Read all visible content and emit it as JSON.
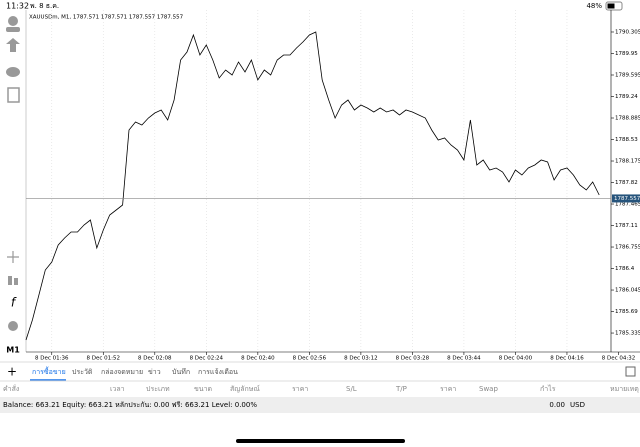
{
  "status_bar": {
    "time": "11:32",
    "date": "พ. 8 ธ.ค.",
    "battery": "48%"
  },
  "toolbar": {
    "timeframe": "M1"
  },
  "chart_data": {
    "type": "line",
    "title": "XAUUSDm, M1, 1787.571 1787.571 1787.557 1787.557",
    "x": [
      "8 Dec 01:28",
      "8 Dec 01:30",
      "8 Dec 01:32",
      "8 Dec 01:34",
      "8 Dec 01:36",
      "8 Dec 01:38",
      "8 Dec 01:40",
      "8 Dec 01:42",
      "8 Dec 01:44",
      "8 Dec 01:46",
      "8 Dec 01:48",
      "8 Dec 01:50",
      "8 Dec 01:52",
      "8 Dec 01:54",
      "8 Dec 01:56",
      "8 Dec 01:58",
      "8 Dec 02:00",
      "8 Dec 02:02",
      "8 Dec 02:04",
      "8 Dec 02:06",
      "8 Dec 02:08",
      "8 Dec 02:10",
      "8 Dec 02:12",
      "8 Dec 02:14",
      "8 Dec 02:16",
      "8 Dec 02:18",
      "8 Dec 02:20",
      "8 Dec 02:22",
      "8 Dec 02:24",
      "8 Dec 02:26",
      "8 Dec 02:28",
      "8 Dec 02:30",
      "8 Dec 02:32",
      "8 Dec 02:34",
      "8 Dec 02:36",
      "8 Dec 02:38",
      "8 Dec 02:40",
      "8 Dec 02:42",
      "8 Dec 02:44",
      "8 Dec 02:46",
      "8 Dec 02:48",
      "8 Dec 02:50",
      "8 Dec 02:52",
      "8 Dec 02:54",
      "8 Dec 02:56",
      "8 Dec 02:58",
      "8 Dec 03:00",
      "8 Dec 03:02",
      "8 Dec 03:04",
      "8 Dec 03:06",
      "8 Dec 03:08",
      "8 Dec 03:10",
      "8 Dec 03:12",
      "8 Dec 03:14",
      "8 Dec 03:16",
      "8 Dec 03:18",
      "8 Dec 03:20",
      "8 Dec 03:22",
      "8 Dec 03:24",
      "8 Dec 03:26",
      "8 Dec 03:28",
      "8 Dec 03:30",
      "8 Dec 03:32",
      "8 Dec 03:34",
      "8 Dec 03:36",
      "8 Dec 03:38",
      "8 Dec 03:40",
      "8 Dec 03:42",
      "8 Dec 03:44",
      "8 Dec 03:46",
      "8 Dec 03:48",
      "8 Dec 03:50",
      "8 Dec 03:52",
      "8 Dec 03:54",
      "8 Dec 03:56",
      "8 Dec 03:58",
      "8 Dec 04:00",
      "8 Dec 04:02",
      "8 Dec 04:04",
      "8 Dec 04:06",
      "8 Dec 04:08",
      "8 Dec 04:10",
      "8 Dec 04:12",
      "8 Dec 04:14",
      "8 Dec 04:16",
      "8 Dec 04:18",
      "8 Dec 04:20",
      "8 Dec 04:22",
      "8 Dec 04:24",
      "8 Dec 04:26",
      "8 Dec 04:28",
      "8 Dec 04:30",
      "8 Dec 04:32"
    ],
    "series": [
      {
        "name": "XAUUSDm",
        "color": "#000000",
        "values": [
          1785.22,
          1785.55,
          1785.963,
          1786.376,
          1786.508,
          1786.788,
          1786.904,
          1787.003,
          1787.003,
          1787.119,
          1787.201,
          1786.739,
          1787.036,
          1787.284,
          1787.366,
          1787.449,
          1788.687,
          1788.819,
          1788.77,
          1788.885,
          1788.968,
          1789.017,
          1788.852,
          1789.182,
          1789.843,
          1789.975,
          1790.255,
          1789.925,
          1790.09,
          1789.843,
          1789.546,
          1789.678,
          1789.595,
          1789.81,
          1789.645,
          1789.843,
          1789.513,
          1789.678,
          1789.595,
          1789.843,
          1789.925,
          1789.925,
          1790.041,
          1790.14,
          1790.255,
          1790.305,
          1789.513,
          1789.182,
          1788.885,
          1789.1,
          1789.182,
          1789.017,
          1789.1,
          1789.05,
          1788.984,
          1789.05,
          1788.984,
          1789.017,
          1788.935,
          1789.017,
          1788.984,
          1788.935,
          1788.885,
          1788.687,
          1788.522,
          1788.555,
          1788.439,
          1788.357,
          1788.192,
          1788.852,
          1788.109,
          1788.192,
          1788.027,
          1788.06,
          1787.994,
          1787.828,
          1788.027,
          1787.944,
          1788.06,
          1788.109,
          1788.192,
          1788.159,
          1787.862,
          1788.027,
          1788.06,
          1787.944,
          1787.779,
          1787.696,
          1787.828,
          1787.614,
          null,
          null,
          null
        ]
      }
    ],
    "current_price": 1787.557,
    "ylim": [
      1785.055,
      1790.668
    ],
    "yticks": [
      1785.335,
      1785.69,
      1786.045,
      1786.4,
      1786.755,
      1787.11,
      1787.465,
      1787.82,
      1788.175,
      1788.53,
      1788.885,
      1789.24,
      1789.595,
      1789.95,
      1790.305
    ],
    "xticks": [
      "8 Dec 01:36",
      "8 Dec 01:52",
      "8 Dec 02:08",
      "8 Dec 02:24",
      "8 Dec 02:40",
      "8 Dec 02:56",
      "8 Dec 03:12",
      "8 Dec 03:28",
      "8 Dec 03:44",
      "8 Dec 04:00",
      "8 Dec 04:16",
      "8 Dec 04:32"
    ],
    "grid": true
  },
  "tabs": [
    "การซื้อขาย",
    "ประวัติ",
    "กล่องจดหมาย",
    "ข่าว",
    "บันทึก",
    "การแจ้งเตือน"
  ],
  "columns": [
    "คำสั่ง",
    "เวลา",
    "ประเภท",
    "ขนาด",
    "สัญลักษณ์",
    "ราคา",
    "S/L",
    "T/P",
    "ราคา",
    "Swap",
    "กำไร",
    "หมายเหตุ"
  ],
  "summary": {
    "text": "Balance: 663.21 Equity: 663.21 หลักประกัน: 0.00 ฟรี: 663.21 Level: 0.00%",
    "profit": "0.00",
    "currency": "USD"
  }
}
